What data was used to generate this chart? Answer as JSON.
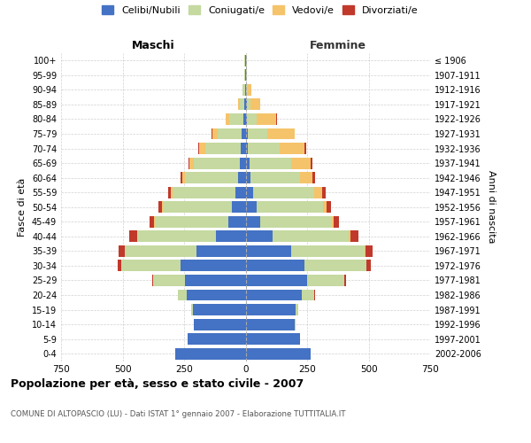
{
  "age_groups": [
    "0-4",
    "5-9",
    "10-14",
    "15-19",
    "20-24",
    "25-29",
    "30-34",
    "35-39",
    "40-44",
    "45-49",
    "50-54",
    "55-59",
    "60-64",
    "65-69",
    "70-74",
    "75-79",
    "80-84",
    "85-89",
    "90-94",
    "95-99",
    "100+"
  ],
  "birth_years": [
    "2002-2006",
    "1997-2001",
    "1992-1996",
    "1987-1991",
    "1982-1986",
    "1977-1981",
    "1972-1976",
    "1967-1971",
    "1962-1966",
    "1957-1961",
    "1952-1956",
    "1947-1951",
    "1942-1946",
    "1937-1941",
    "1932-1936",
    "1927-1931",
    "1922-1926",
    "1917-1921",
    "1912-1916",
    "1907-1911",
    "≤ 1906"
  ],
  "male": {
    "celibi": [
      285,
      235,
      210,
      215,
      240,
      245,
      265,
      200,
      120,
      70,
      55,
      40,
      30,
      25,
      20,
      15,
      8,
      5,
      3,
      2,
      2
    ],
    "coniugati": [
      1,
      1,
      2,
      5,
      35,
      130,
      240,
      290,
      320,
      300,
      280,
      255,
      215,
      185,
      145,
      100,
      60,
      20,
      8,
      3,
      2
    ],
    "vedovi": [
      0,
      0,
      0,
      0,
      0,
      0,
      1,
      1,
      2,
      3,
      5,
      8,
      12,
      18,
      25,
      20,
      12,
      5,
      2,
      0,
      0
    ],
    "divorziati": [
      0,
      0,
      0,
      0,
      1,
      5,
      15,
      25,
      30,
      18,
      15,
      10,
      8,
      5,
      3,
      2,
      1,
      0,
      0,
      0,
      0
    ]
  },
  "female": {
    "nubili": [
      265,
      220,
      200,
      205,
      230,
      250,
      240,
      185,
      110,
      60,
      45,
      30,
      20,
      15,
      10,
      8,
      5,
      4,
      3,
      2,
      2
    ],
    "coniugate": [
      1,
      1,
      3,
      8,
      50,
      150,
      250,
      300,
      310,
      290,
      270,
      250,
      200,
      170,
      130,
      80,
      40,
      15,
      5,
      2,
      2
    ],
    "vedove": [
      0,
      0,
      0,
      0,
      0,
      1,
      2,
      3,
      5,
      8,
      15,
      30,
      50,
      80,
      100,
      110,
      80,
      40,
      15,
      3,
      1
    ],
    "divorziate": [
      0,
      0,
      0,
      0,
      2,
      8,
      18,
      28,
      35,
      20,
      18,
      15,
      12,
      8,
      5,
      3,
      2,
      1,
      0,
      0,
      0
    ]
  },
  "colors": {
    "celibi": "#4472c4",
    "coniugati": "#c5d9a0",
    "vedovi": "#f5c36a",
    "divorziati": "#c0392b"
  },
  "xlim": 750,
  "title": "Popolazione per età, sesso e stato civile - 2007",
  "subtitle": "COMUNE DI ALTOPASCIO (LU) - Dati ISTAT 1° gennaio 2007 - Elaborazione TUTTITALIA.IT",
  "ylabel_left": "Fasce di età",
  "ylabel_right": "Anni di nascita",
  "xlabel_left": "Maschi",
  "xlabel_right": "Femmine",
  "legend_labels": [
    "Celibi/Nubili",
    "Coniugati/e",
    "Vedovi/e",
    "Divorziati/e"
  ],
  "bg_color": "#ffffff",
  "grid_color": "#cccccc"
}
